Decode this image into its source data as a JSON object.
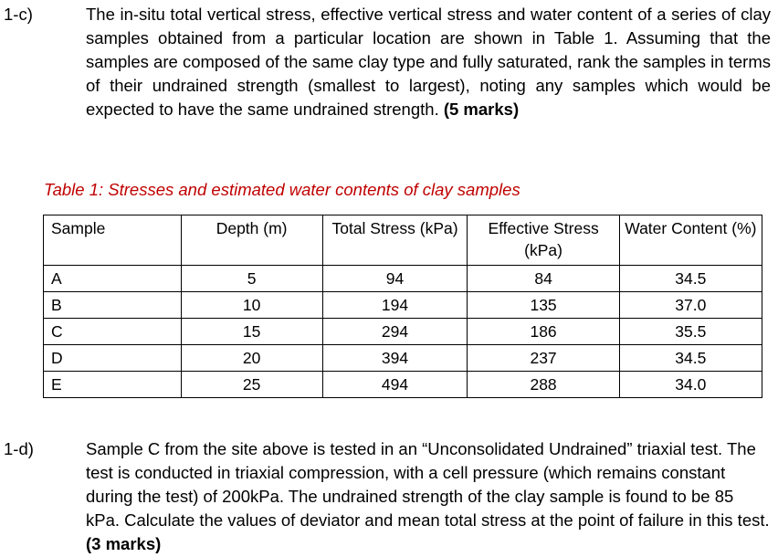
{
  "q1c": {
    "number": "1-c)",
    "text": "The in-situ total vertical stress, effective vertical stress and water content of a series of clay samples obtained from a particular location are shown in Table 1. Assuming that the samples are composed of the same clay type and fully saturated, rank the samples in terms of their undrained strength (smallest to largest), noting any samples which would be expected to have the same undrained strength.",
    "marks": "(5 marks)"
  },
  "table": {
    "caption": "Table 1: Stresses and estimated water contents of clay samples",
    "headers": [
      "Sample",
      "Depth (m)",
      "Total Stress (kPa)",
      "Effective Stress (kPa)",
      "Water Content (%)"
    ],
    "rows": [
      [
        "A",
        "5",
        "94",
        "84",
        "34.5"
      ],
      [
        "B",
        "10",
        "194",
        "135",
        "37.0"
      ],
      [
        "C",
        "15",
        "294",
        "186",
        "35.5"
      ],
      [
        "D",
        "20",
        "394",
        "237",
        "34.5"
      ],
      [
        "E",
        "25",
        "494",
        "288",
        "34.0"
      ]
    ]
  },
  "q1d": {
    "number": "1-d)",
    "text": "Sample C from the site above is tested in an “Unconsolidated Undrained” triaxial test. The test is conducted in triaxial compression, with a cell pressure (which remains constant during the test) of 200kPa. The undrained strength of the clay sample is found to be 85 kPa. Calculate the values of deviator and mean total stress at the point of failure in this test.",
    "marks": "(3 marks)"
  }
}
